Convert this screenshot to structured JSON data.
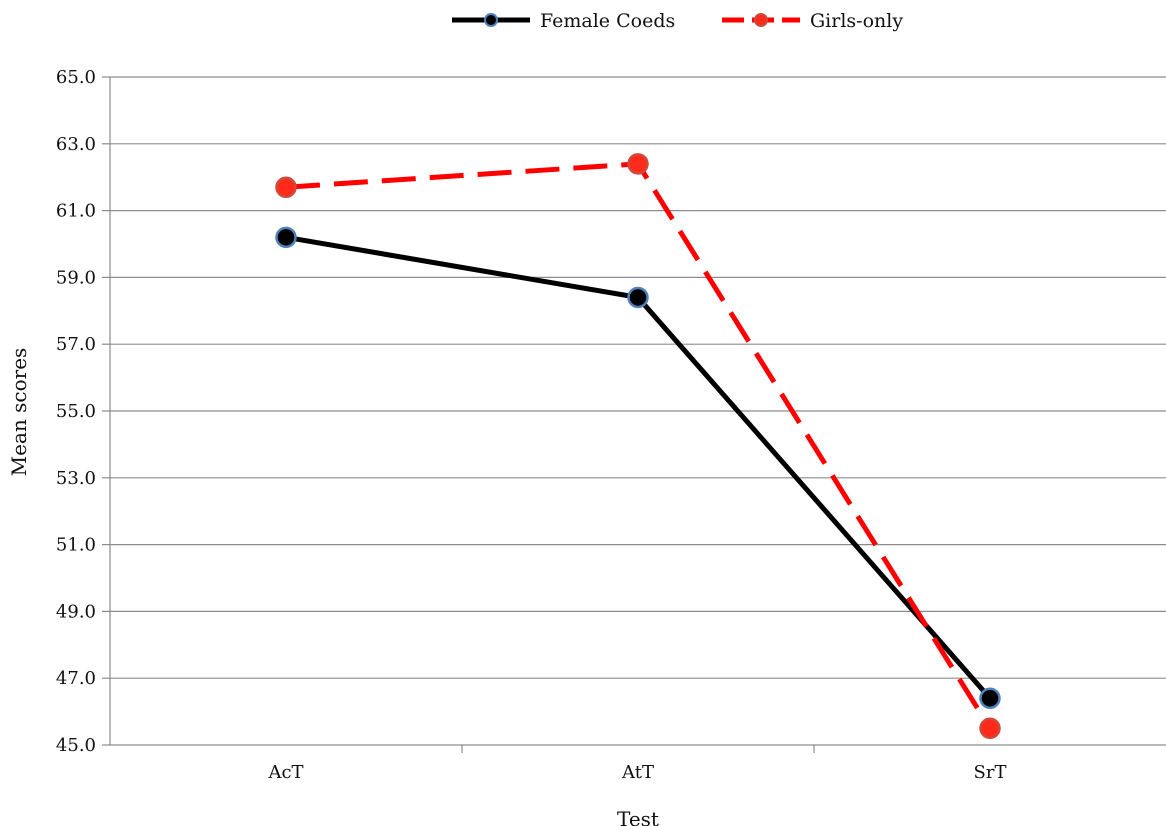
{
  "chart_data": {
    "type": "line",
    "categories": [
      "AcT",
      "AtT",
      "SrT"
    ],
    "series": [
      {
        "name": "Female Coeds",
        "values": [
          60.2,
          58.4,
          46.4
        ],
        "line_color": "#000000",
        "marker_fill": "#000000",
        "marker_stroke": "#4f81bd",
        "dash": "solid"
      },
      {
        "name": "Girls-only",
        "values": [
          61.7,
          62.4,
          45.5
        ],
        "line_color": "#ff0000",
        "marker_fill": "#ff2a1a",
        "marker_stroke": "#d04a3a",
        "dash": "dashed"
      }
    ],
    "xlabel": "Test",
    "ylabel": "Mean scores",
    "ylim": [
      45.0,
      65.0
    ],
    "yticks": [
      "45.0",
      "47.0",
      "49.0",
      "51.0",
      "53.0",
      "55.0",
      "57.0",
      "59.0",
      "61.0",
      "63.0",
      "65.0"
    ],
    "grid": "horizontal",
    "legend_position": "top-center",
    "colors": {
      "grid": "#8c8c8c",
      "axis": "#8c8c8c"
    }
  }
}
